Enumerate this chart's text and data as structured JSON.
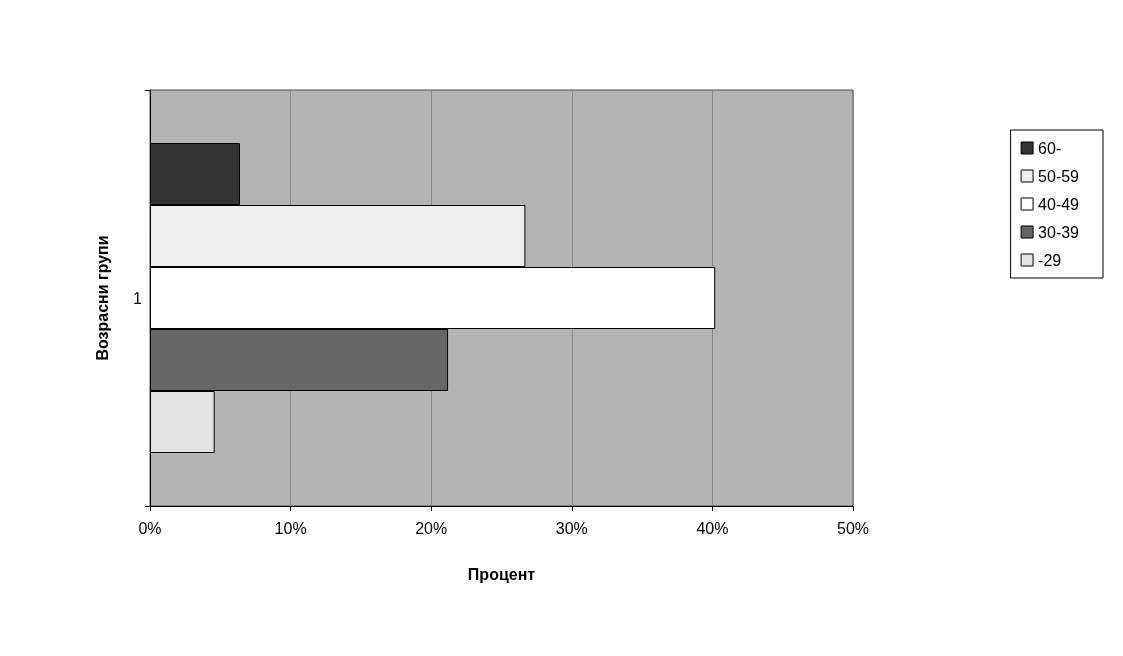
{
  "chart_data": {
    "type": "bar",
    "orientation": "horizontal",
    "xlabel": "Процент",
    "ylabel": "Возрасни групи",
    "categories": [
      "1"
    ],
    "series": [
      {
        "name": "60-",
        "color": "#333333",
        "values": [
          6.4
        ]
      },
      {
        "name": "50-59",
        "color": "#eeeeee",
        "values": [
          26.7
        ]
      },
      {
        "name": "40-49",
        "color": "#ffffff",
        "values": [
          40.2
        ]
      },
      {
        "name": "30-39",
        "color": "#666666",
        "values": [
          21.2
        ]
      },
      {
        "name": "-29",
        "color": "#e4e4e4",
        "values": [
          4.6
        ]
      }
    ],
    "xlim": [
      0,
      50
    ],
    "xticks": [
      {
        "value": 0,
        "label": "0%"
      },
      {
        "value": 10,
        "label": "10%"
      },
      {
        "value": 20,
        "label": "20%"
      },
      {
        "value": 30,
        "label": "30%"
      },
      {
        "value": 40,
        "label": "40%"
      },
      {
        "value": 50,
        "label": "50%"
      }
    ],
    "grid": "x",
    "legend": "right"
  }
}
